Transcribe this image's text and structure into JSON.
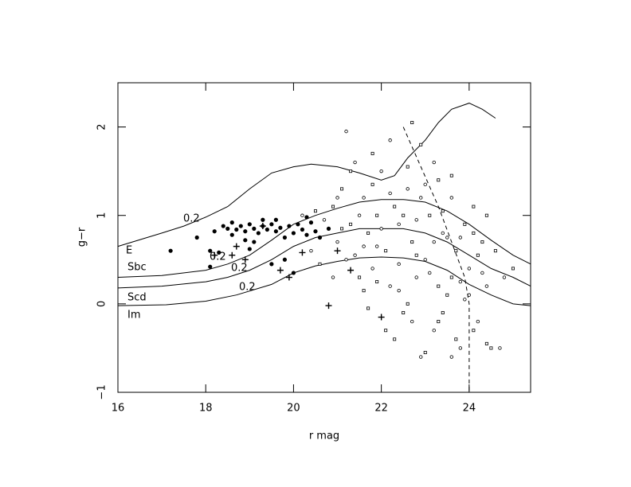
{
  "chart_data": {
    "type": "scatter",
    "xlabel": "r mag",
    "ylabel": "g−r",
    "xlim": [
      16,
      25.4
    ],
    "ylim": [
      -1,
      2.5
    ],
    "xticks": [
      16,
      18,
      20,
      22,
      24
    ],
    "yticks": [
      {
        "value": -1,
        "label": "−1"
      },
      0,
      1,
      2
    ],
    "annotations": [
      "E",
      "Sbc",
      "Scd",
      "Im",
      "0.2",
      "0.2",
      "0.2",
      "0.2"
    ],
    "curves": [
      {
        "style": "solid",
        "x": [
          16,
          17,
          17.5,
          18,
          18.5,
          19,
          19.5,
          20,
          20.4,
          21,
          21.5,
          22,
          22.3,
          22.6,
          23,
          23.3,
          23.6,
          24,
          24.3,
          24.6
        ],
        "y": [
          0.65,
          0.8,
          0.88,
          0.98,
          1.1,
          1.3,
          1.48,
          1.55,
          1.58,
          1.55,
          1.48,
          1.4,
          1.45,
          1.65,
          1.85,
          2.05,
          2.2,
          2.27,
          2.2,
          2.1
        ]
      },
      {
        "style": "solid",
        "x": [
          16,
          17,
          18,
          18.5,
          19,
          19.5,
          20,
          20.5,
          21,
          21.5,
          22,
          22.5,
          23,
          23.5,
          24,
          24.5,
          25,
          25.4
        ],
        "y": [
          0.3,
          0.32,
          0.38,
          0.45,
          0.55,
          0.72,
          0.9,
          1.0,
          1.08,
          1.15,
          1.18,
          1.18,
          1.15,
          1.05,
          0.9,
          0.72,
          0.55,
          0.45
        ]
      },
      {
        "style": "solid",
        "x": [
          16,
          17,
          18,
          18.5,
          19,
          19.5,
          20,
          20.5,
          21,
          21.5,
          22,
          22.5,
          23,
          23.5,
          24,
          24.5,
          25,
          25.4
        ],
        "y": [
          0.18,
          0.2,
          0.25,
          0.3,
          0.38,
          0.5,
          0.65,
          0.75,
          0.8,
          0.85,
          0.85,
          0.85,
          0.8,
          0.7,
          0.55,
          0.4,
          0.3,
          0.2
        ]
      },
      {
        "style": "solid",
        "x": [
          16,
          17.1,
          18,
          18.7,
          19.5,
          20,
          20.5,
          21,
          21.5,
          22,
          22.5,
          23,
          23.5,
          24,
          24.5,
          25,
          25.4
        ],
        "y": [
          -0.02,
          -0.01,
          0.03,
          0.1,
          0.22,
          0.35,
          0.43,
          0.48,
          0.52,
          0.53,
          0.52,
          0.48,
          0.38,
          0.22,
          0.1,
          0.0,
          -0.02
        ]
      },
      {
        "style": "dashed",
        "x": [
          22.5,
          23.3,
          23.9,
          24.0,
          24.0
        ],
        "y": [
          2.0,
          1.1,
          0.3,
          0.0,
          -1.0
        ]
      }
    ],
    "series": [
      {
        "marker": "filled",
        "x": [
          17.2,
          17.8,
          18.1,
          18.2,
          18.4,
          18.5,
          18.6,
          18.7,
          18.8,
          18.9,
          19.0,
          19.1,
          19.2,
          19.3,
          19.4,
          19.5,
          19.6,
          19.7,
          19.8,
          19.9,
          20.0,
          20.1,
          20.2,
          20.3,
          20.4,
          20.5,
          20.6,
          19.1,
          19.3,
          18.9,
          19.8,
          20.0,
          19.5,
          18.6,
          20.3,
          19.0,
          18.3,
          20.8,
          19.6,
          18.1
        ],
        "y": [
          0.6,
          0.75,
          0.6,
          0.82,
          0.88,
          0.85,
          0.78,
          0.84,
          0.88,
          0.82,
          0.9,
          0.85,
          0.8,
          0.88,
          0.84,
          0.9,
          0.82,
          0.86,
          0.75,
          0.88,
          0.8,
          0.9,
          0.84,
          0.78,
          0.92,
          0.82,
          0.75,
          0.7,
          0.95,
          0.72,
          0.5,
          0.35,
          0.45,
          0.92,
          0.98,
          0.62,
          0.58,
          0.85,
          0.95,
          0.42
        ]
      },
      {
        "marker": "cross",
        "x": [
          18.2,
          18.7,
          18.6,
          19.7,
          19.9,
          20.8,
          21.3,
          22.0,
          20.2,
          21.0,
          19.3,
          18.9
        ],
        "y": [
          0.55,
          0.65,
          0.55,
          0.38,
          0.3,
          -0.02,
          0.38,
          -0.15,
          0.58,
          0.6,
          0.88,
          0.5
        ]
      },
      {
        "marker": "open",
        "x": [
          20.2,
          20.5,
          20.7,
          20.9,
          21.0,
          21.1,
          21.2,
          21.3,
          21.4,
          21.5,
          21.6,
          21.7,
          21.8,
          21.9,
          22.0,
          22.1,
          22.2,
          22.3,
          22.4,
          22.5,
          22.6,
          22.7,
          22.8,
          22.9,
          23.0,
          23.1,
          23.2,
          23.3,
          23.4,
          23.5,
          23.6,
          23.7,
          23.8,
          23.9,
          24.0,
          24.1,
          24.2,
          24.3,
          24.4,
          24.5,
          21.2,
          21.8,
          22.2,
          22.7,
          23.2,
          23.6,
          22.9,
          23.3,
          23.8,
          24.2,
          20.4,
          20.6,
          20.9,
          21.1,
          21.4,
          21.6,
          21.9,
          22.1,
          22.4,
          22.6,
          22.8,
          23.0,
          23.1,
          23.4,
          23.5,
          23.7,
          23.9,
          24.1,
          24.3,
          24.6,
          24.8,
          25.0,
          24.7,
          24.4,
          23.6,
          22.3,
          22.9,
          21.7,
          22.0,
          22.5,
          21.0,
          21.3,
          21.5,
          21.8,
          22.2,
          22.6,
          23.0,
          23.4,
          23.8,
          24.1,
          22.4,
          22.8,
          23.2,
          23.6,
          24.0,
          24.4,
          21.6,
          21.9,
          22.7,
          23.3
        ],
        "y": [
          1.0,
          1.05,
          0.95,
          1.1,
          0.7,
          1.3,
          0.5,
          0.9,
          1.6,
          0.3,
          1.2,
          0.8,
          0.4,
          1.0,
          1.5,
          0.6,
          0.2,
          1.1,
          0.9,
          -0.1,
          1.3,
          0.7,
          0.3,
          1.8,
          0.5,
          1.0,
          -0.3,
          1.4,
          0.8,
          0.1,
          1.2,
          0.6,
          -0.5,
          0.9,
          0.4,
          1.1,
          -0.2,
          0.7,
          0.2,
          -0.5,
          1.95,
          1.7,
          1.85,
          2.05,
          1.6,
          1.45,
          1.2,
          0.2,
          0.25,
          0.55,
          0.6,
          0.45,
          0.3,
          0.85,
          0.55,
          0.15,
          0.65,
          -0.3,
          0.45,
          0.0,
          0.95,
          -0.55,
          0.35,
          -0.1,
          0.75,
          -0.4,
          0.05,
          -0.3,
          0.35,
          0.6,
          0.3,
          0.4,
          -0.5,
          -0.45,
          -0.6,
          -0.4,
          -0.6,
          -0.05,
          0.85,
          1.0,
          1.2,
          1.5,
          1.0,
          1.35,
          1.25,
          1.55,
          1.35,
          1.05,
          0.75,
          0.8,
          0.15,
          0.55,
          0.7,
          0.3,
          0.1,
          1.0,
          0.65,
          0.25,
          -0.2,
          -0.2
        ]
      }
    ]
  }
}
